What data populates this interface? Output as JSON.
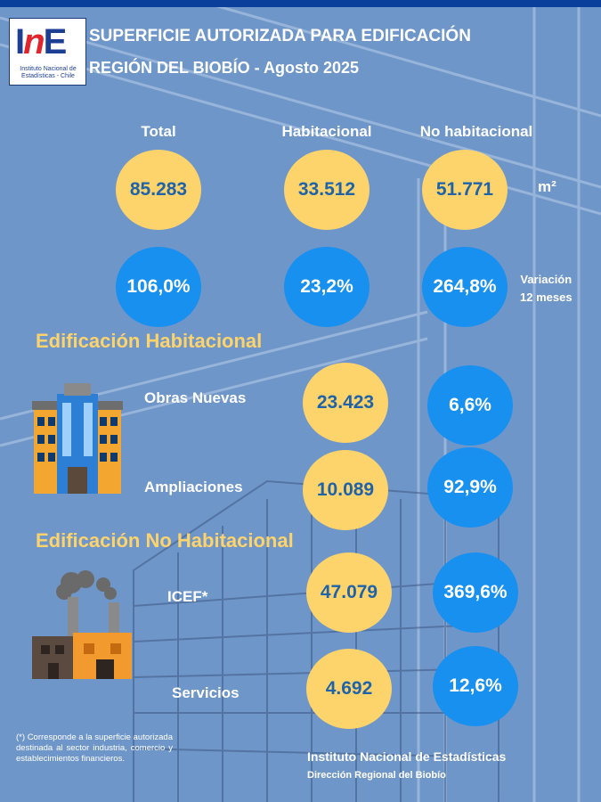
{
  "header": {
    "title": "SUPERFICIE AUTORIZADA PARA EDIFICACIÓN",
    "subtitle": "REGIÓN DEL BIOBÍO - Agosto 2025"
  },
  "logo": {
    "mark": "INE",
    "text": "Instituto Nacional de Estadísticas - Chile"
  },
  "columns": [
    "Total",
    "Habitacional",
    "No habitacional"
  ],
  "surface": {
    "values": [
      "85.283",
      "33.512",
      "51.771"
    ],
    "unit": "m²"
  },
  "variation": {
    "values": [
      "106,0%",
      "23,2%",
      "264,8%"
    ],
    "label_line1": "Variación",
    "label_line2": "12 meses"
  },
  "habitacional": {
    "title": "Edificación Habitacional",
    "icon": "building-icon",
    "rows": [
      {
        "label": "Obras Nuevas",
        "value": "23.423",
        "variation": "6,6%"
      },
      {
        "label": "Ampliaciones",
        "value": "10.089",
        "variation": "92,9%"
      }
    ]
  },
  "no_habitacional": {
    "title": "Edificación No Habitacional",
    "icon": "factory-icon",
    "rows": [
      {
        "label": "ICEF*",
        "value": "47.079",
        "variation": "369,6%"
      },
      {
        "label": "Servicios",
        "value": "4.692",
        "variation": "12,6%"
      }
    ]
  },
  "footnote": "(*) Corresponde a la superficie autorizada destinada al sector industria, comercio y establecimientos financieros.",
  "footer": {
    "line1": "Instituto Nacional de Estadísticas",
    "line2": "Dirección Regional del Biobío"
  },
  "colors": {
    "yellow": "#fdd36b",
    "blue": "#1790f0",
    "value_text": "#1f63a8",
    "background": "#6f96c9"
  }
}
